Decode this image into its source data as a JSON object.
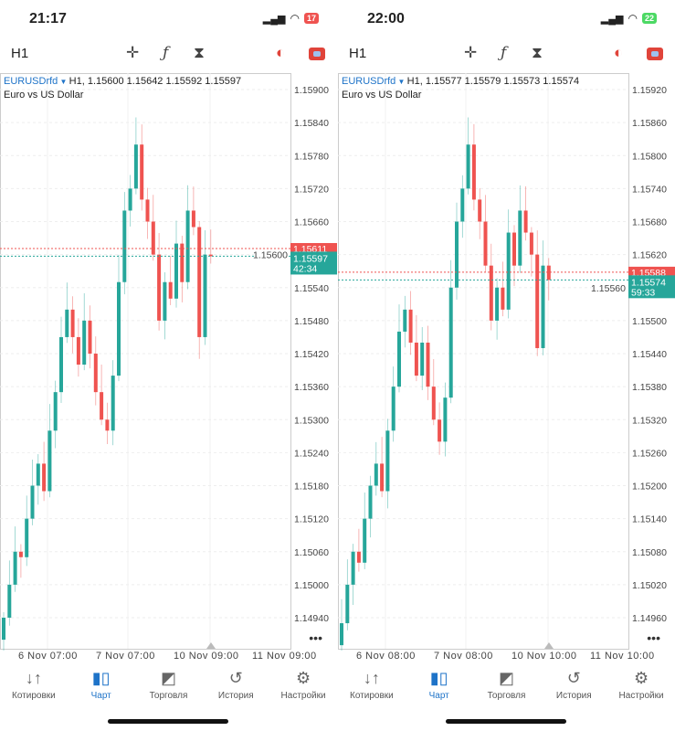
{
  "colors": {
    "up": "#26a69a",
    "down": "#ef5350",
    "accent": "#1e73c8"
  },
  "nav": [
    {
      "label": "Котировки",
      "icon": "quotes-arrows-icon"
    },
    {
      "label": "Чарт",
      "icon": "candles-icon"
    },
    {
      "label": "Торговля",
      "icon": "trade-chart-icon"
    },
    {
      "label": "История",
      "icon": "history-clock-icon"
    },
    {
      "label": "Настройки",
      "icon": "settings-gear-icon"
    }
  ],
  "panels": [
    {
      "time": "21:17",
      "battery": "17",
      "battery_color": "#ef5350",
      "timeframe": "H1",
      "symbol": "EURUSDrfd",
      "ohlc": "H1, 1.15600 1.15642 1.15592 1.15597",
      "description": "Euro vs US Dollar",
      "price_ticks": [
        "1.15900",
        "1.15840",
        "1.15780",
        "1.15720",
        "1.15660",
        "1.15600",
        "1.15540",
        "1.15480",
        "1.15420",
        "1.15360",
        "1.15300",
        "1.15240",
        "1.15180",
        "1.15120",
        "1.15060",
        "1.15000",
        "1.14940"
      ],
      "ask_price": "1.15611",
      "bid_price": "1.15597",
      "countdown": "42:34",
      "x_ticks": [
        "6 Nov 07:00",
        "7 Nov 07:00",
        "10 Nov 09:00",
        "11 Nov 09:00"
      ],
      "closes": [
        1.1494,
        1.15,
        1.1506,
        1.1505,
        1.1512,
        1.1518,
        1.1522,
        1.1517,
        1.1528,
        1.1535,
        1.1545,
        1.155,
        1.1545,
        1.154,
        1.1548,
        1.1542,
        1.1535,
        1.153,
        1.1528,
        1.1538,
        1.1555,
        1.1568,
        1.1572,
        1.158,
        1.157,
        1.1566,
        1.156,
        1.1548,
        1.1555,
        1.1552,
        1.1562,
        1.1555,
        1.1568,
        1.1565,
        1.1545,
        1.156,
        1.15597
      ]
    },
    {
      "time": "22:00",
      "battery": "22",
      "battery_color": "#4cd964",
      "timeframe": "H1",
      "symbol": "EURUSDrfd",
      "ohlc": "H1, 1.15577 1.15579 1.15573 1.15574",
      "description": "Euro vs US Dollar",
      "price_ticks": [
        "1.15920",
        "1.15860",
        "1.15800",
        "1.15740",
        "1.15680",
        "1.15620",
        "1.15560",
        "1.15500",
        "1.15440",
        "1.15380",
        "1.15320",
        "1.15260",
        "1.15200",
        "1.15140",
        "1.15080",
        "1.15020",
        "1.14960"
      ],
      "ask_price": "1.15588",
      "bid_price": "1.15574",
      "countdown": "59:33",
      "x_ticks": [
        "6 Nov 08:00",
        "7 Nov 08:00",
        "10 Nov 10:00",
        "11 Nov 10:00"
      ],
      "closes": [
        1.1495,
        1.1502,
        1.1508,
        1.1506,
        1.1514,
        1.152,
        1.1524,
        1.1519,
        1.153,
        1.1538,
        1.1548,
        1.1552,
        1.1546,
        1.154,
        1.1546,
        1.1538,
        1.1532,
        1.1528,
        1.1536,
        1.1556,
        1.1568,
        1.1574,
        1.1582,
        1.1572,
        1.1568,
        1.156,
        1.155,
        1.1556,
        1.1552,
        1.1566,
        1.156,
        1.157,
        1.1566,
        1.1562,
        1.1545,
        1.156,
        1.15574
      ]
    }
  ]
}
